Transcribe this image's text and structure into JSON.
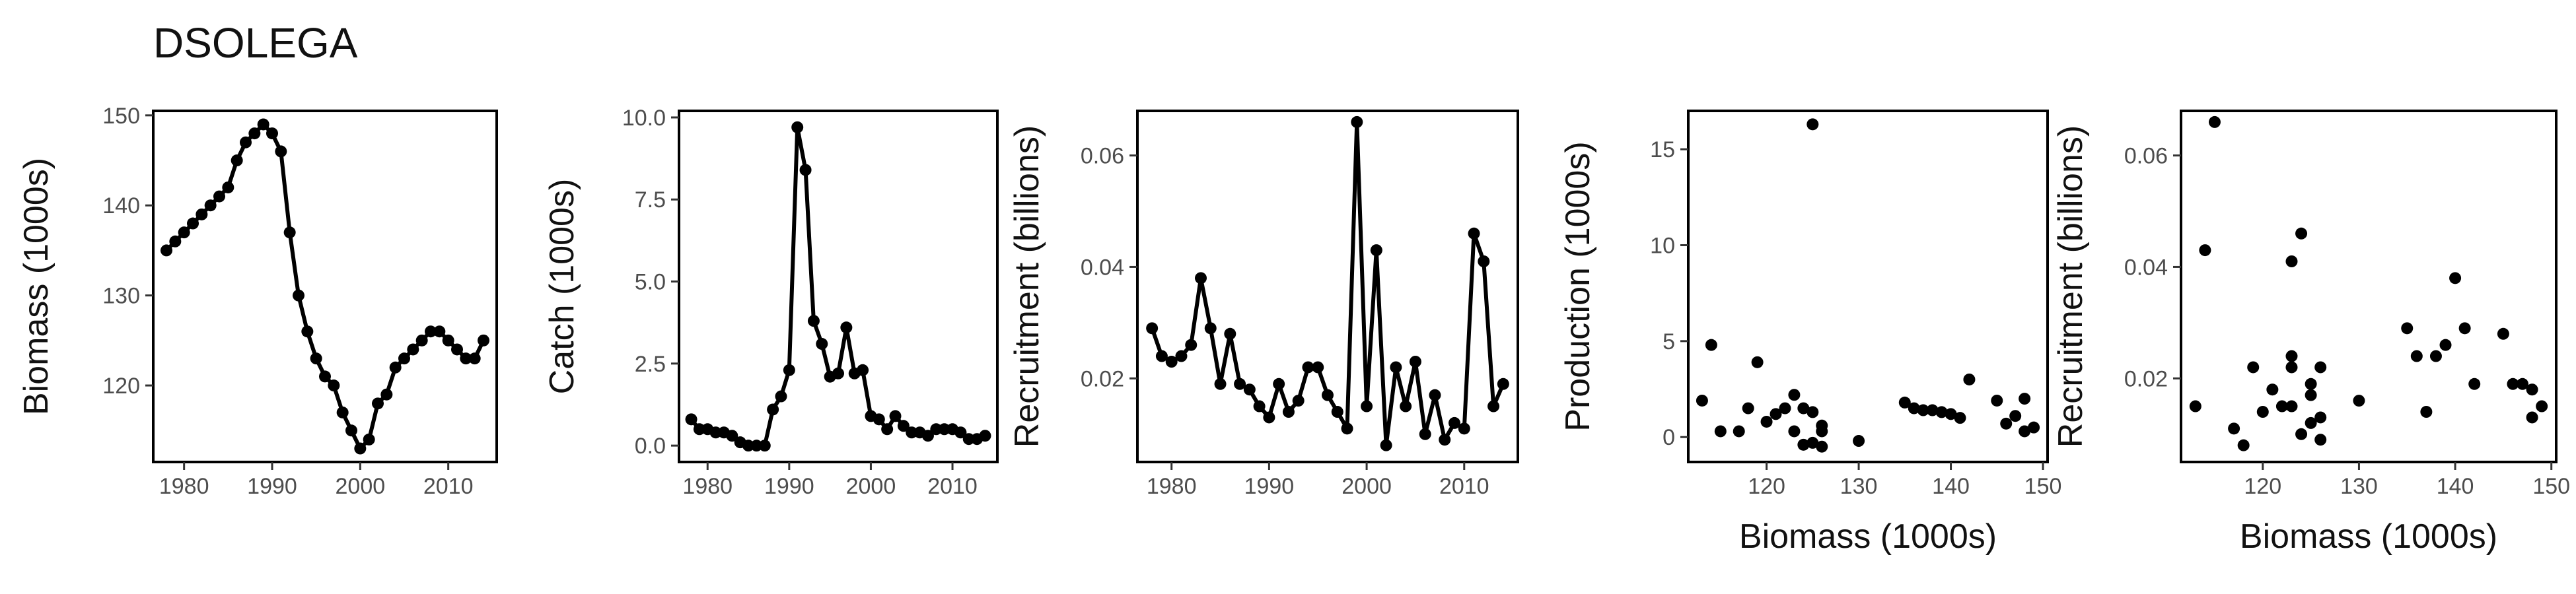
{
  "title": "DSOLEGA",
  "chart_data": [
    {
      "type": "line",
      "xlabel": "",
      "ylabel": "Biomass (1000s)",
      "xlim": [
        1976.5,
        2015.5
      ],
      "ylim": [
        111.5,
        150.5
      ],
      "xticks": [
        1980,
        1990,
        2000,
        2010
      ],
      "yticks": [
        120,
        130,
        140,
        150
      ],
      "x": [
        1978,
        1979,
        1980,
        1981,
        1982,
        1983,
        1984,
        1985,
        1986,
        1987,
        1988,
        1989,
        1990,
        1991,
        1992,
        1993,
        1994,
        1995,
        1996,
        1997,
        1998,
        1999,
        2000,
        2001,
        2002,
        2003,
        2004,
        2005,
        2006,
        2007,
        2008,
        2009,
        2010,
        2011,
        2012,
        2013,
        2014
      ],
      "y": [
        135,
        136,
        137,
        138,
        139,
        140,
        141,
        142,
        145,
        147,
        148,
        149,
        148,
        146,
        137,
        130,
        126,
        123,
        121,
        120,
        117,
        115,
        113,
        114,
        118,
        119,
        122,
        123,
        124,
        125,
        126,
        126,
        125,
        124,
        123,
        123,
        125
      ]
    },
    {
      "type": "line",
      "xlabel": "",
      "ylabel": "Catch (1000s)",
      "xlim": [
        1976.5,
        2015.5
      ],
      "ylim": [
        -0.5,
        10.2
      ],
      "xticks": [
        1980,
        1990,
        2000,
        2010
      ],
      "yticks": [
        0.0,
        2.5,
        5.0,
        7.5,
        10.0
      ],
      "x": [
        1978,
        1979,
        1980,
        1981,
        1982,
        1983,
        1984,
        1985,
        1986,
        1987,
        1988,
        1989,
        1990,
        1991,
        1992,
        1993,
        1994,
        1995,
        1996,
        1997,
        1998,
        1999,
        2000,
        2001,
        2002,
        2003,
        2004,
        2005,
        2006,
        2007,
        2008,
        2009,
        2010,
        2011,
        2012,
        2013,
        2014
      ],
      "y": [
        0.8,
        0.5,
        0.5,
        0.4,
        0.4,
        0.3,
        0.1,
        0.0,
        0.0,
        0.0,
        1.1,
        1.5,
        2.3,
        9.7,
        8.4,
        3.8,
        3.1,
        2.1,
        2.2,
        3.6,
        2.2,
        2.3,
        0.9,
        0.8,
        0.5,
        0.9,
        0.6,
        0.4,
        0.4,
        0.3,
        0.5,
        0.5,
        0.5,
        0.4,
        0.2,
        0.2,
        0.3
      ]
    },
    {
      "type": "line",
      "xlabel": "",
      "ylabel": "Recruitment (billions)",
      "xlim": [
        1976.5,
        2015.5
      ],
      "ylim": [
        0.005,
        0.068
      ],
      "xticks": [
        1980,
        1990,
        2000,
        2010
      ],
      "yticks": [
        0.02,
        0.04,
        0.06
      ],
      "x": [
        1978,
        1979,
        1980,
        1981,
        1982,
        1983,
        1984,
        1985,
        1986,
        1987,
        1988,
        1989,
        1990,
        1991,
        1992,
        1993,
        1994,
        1995,
        1996,
        1997,
        1998,
        1999,
        2000,
        2001,
        2002,
        2003,
        2004,
        2005,
        2006,
        2007,
        2008,
        2009,
        2010,
        2011,
        2012,
        2013,
        2014
      ],
      "y": [
        0.029,
        0.024,
        0.023,
        0.024,
        0.026,
        0.038,
        0.029,
        0.019,
        0.028,
        0.019,
        0.018,
        0.015,
        0.013,
        0.019,
        0.014,
        0.016,
        0.022,
        0.022,
        0.017,
        0.014,
        0.011,
        0.066,
        0.015,
        0.043,
        0.008,
        0.022,
        0.015,
        0.023,
        0.01,
        0.017,
        0.009,
        0.012,
        0.011,
        0.046,
        0.041,
        0.015,
        0.019
      ]
    },
    {
      "type": "scatter",
      "xlabel": "Biomass (1000s)",
      "ylabel": "Production (1000s)",
      "xlim": [
        111.5,
        150.5
      ],
      "ylim": [
        -1.3,
        17.0
      ],
      "xticks": [
        120,
        130,
        140,
        150
      ],
      "yticks": [
        0,
        5,
        10,
        15
      ],
      "points": [
        [
          113,
          1.9
        ],
        [
          114,
          4.8
        ],
        [
          115,
          0.3
        ],
        [
          117,
          0.3
        ],
        [
          118,
          1.5
        ],
        [
          119,
          3.9
        ],
        [
          120,
          0.8
        ],
        [
          121,
          1.2
        ],
        [
          122,
          1.5
        ],
        [
          123,
          2.2
        ],
        [
          123,
          0.3
        ],
        [
          124,
          1.5
        ],
        [
          124,
          -0.4
        ],
        [
          125,
          1.3
        ],
        [
          125,
          16.3
        ],
        [
          125,
          -0.3
        ],
        [
          126,
          0.6
        ],
        [
          126,
          -0.5
        ],
        [
          126,
          0.3
        ],
        [
          130,
          -0.2
        ],
        [
          135,
          1.8
        ],
        [
          136,
          1.5
        ],
        [
          137,
          1.4
        ],
        [
          138,
          1.4
        ],
        [
          139,
          1.3
        ],
        [
          140,
          1.2
        ],
        [
          141,
          1.0
        ],
        [
          142,
          3.0
        ],
        [
          145,
          1.9
        ],
        [
          146,
          0.7
        ],
        [
          147,
          1.1
        ],
        [
          148,
          2.0
        ],
        [
          148,
          0.3
        ],
        [
          149,
          0.5
        ]
      ]
    },
    {
      "type": "scatter",
      "xlabel": "Biomass (1000s)",
      "ylabel": "Recruitment (billions)",
      "xlim": [
        111.5,
        150.5
      ],
      "ylim": [
        0.005,
        0.068
      ],
      "xticks": [
        120,
        130,
        140,
        150
      ],
      "yticks": [
        0.02,
        0.04,
        0.06
      ],
      "points": [
        [
          113,
          0.015
        ],
        [
          114,
          0.043
        ],
        [
          115,
          0.066
        ],
        [
          117,
          0.011
        ],
        [
          118,
          0.008
        ],
        [
          119,
          0.022
        ],
        [
          120,
          0.014
        ],
        [
          121,
          0.018
        ],
        [
          122,
          0.015
        ],
        [
          123,
          0.022
        ],
        [
          123,
          0.041
        ],
        [
          123,
          0.024
        ],
        [
          123,
          0.015
        ],
        [
          124,
          0.046
        ],
        [
          124,
          0.01
        ],
        [
          125,
          0.017
        ],
        [
          125,
          0.019
        ],
        [
          125,
          0.012
        ],
        [
          126,
          0.022
        ],
        [
          126,
          0.013
        ],
        [
          126,
          0.009
        ],
        [
          130,
          0.016
        ],
        [
          135,
          0.029
        ],
        [
          136,
          0.024
        ],
        [
          137,
          0.014
        ],
        [
          138,
          0.024
        ],
        [
          139,
          0.026
        ],
        [
          140,
          0.038
        ],
        [
          141,
          0.029
        ],
        [
          142,
          0.019
        ],
        [
          145,
          0.028
        ],
        [
          146,
          0.019
        ],
        [
          147,
          0.019
        ],
        [
          148,
          0.018
        ],
        [
          148,
          0.013
        ],
        [
          149,
          0.015
        ]
      ]
    }
  ]
}
